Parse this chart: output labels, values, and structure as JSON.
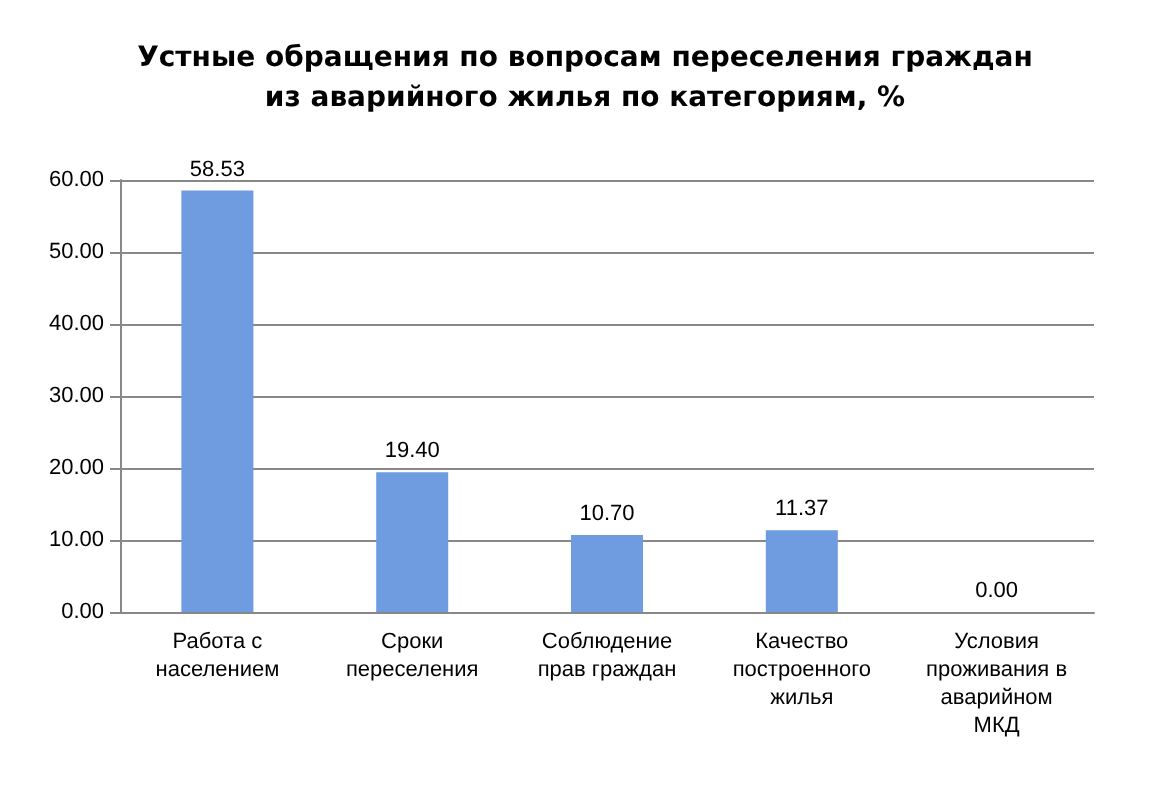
{
  "chart_data": {
    "type": "bar",
    "title": "Устные обращения по вопросам переселения граждан\nиз аварийного жилья по категориям, %",
    "categories": [
      "Работа с\nнаселением",
      "Сроки\nпереселения",
      "Соблюдение\nправ граждан",
      "Качество\nпостроенного\nжилья",
      "Условия\nпроживания в\nаварийном\nМКД"
    ],
    "values": [
      58.53,
      19.4,
      10.7,
      11.37,
      0
    ],
    "value_labels": [
      "58.53",
      "19.40",
      "10.70",
      "11.37",
      "0.00"
    ],
    "color": "#6f9be0",
    "ylim": [
      0,
      60
    ],
    "yticks": [
      {
        "value": 0,
        "label": "0.00"
      },
      {
        "value": 10,
        "label": "10.00"
      },
      {
        "value": 20,
        "label": "20.00"
      },
      {
        "value": 30,
        "label": "30.00"
      },
      {
        "value": 40,
        "label": "40.00"
      },
      {
        "value": 50,
        "label": "50.00"
      },
      {
        "value": 60,
        "label": "60.00"
      }
    ],
    "grid": "y"
  }
}
